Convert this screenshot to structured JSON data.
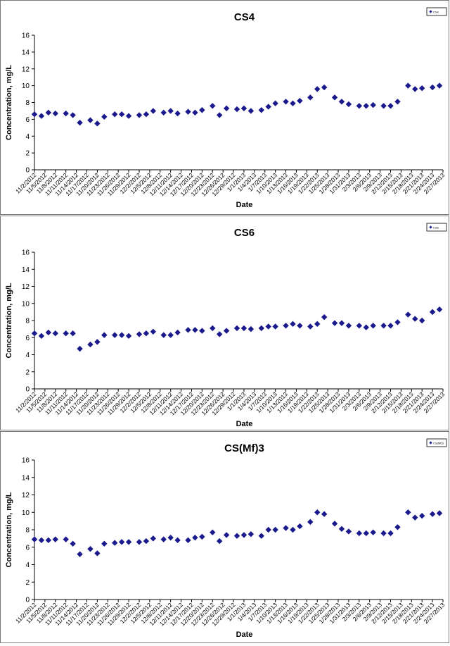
{
  "x_tick_labels": [
    "11/2/2012",
    "11/5/2012",
    "11/8/2012",
    "11/11/2012",
    "11/14/2012",
    "11/17/2012",
    "11/20/2012",
    "11/23/2012",
    "11/26/2012",
    "11/29/2012",
    "12/2/2012",
    "12/5/2012",
    "12/8/2012",
    "12/11/2012",
    "12/14/2012",
    "12/17/2012",
    "12/20/2012",
    "12/23/2012",
    "12/26/2012",
    "12/29/2012",
    "1/1/2013",
    "1/4/2013",
    "1/7/2013",
    "1/10/2013",
    "1/13/2013",
    "1/16/2013",
    "1/19/2013",
    "1/22/2013",
    "1/25/2013",
    "1/28/2013",
    "1/31/2013",
    "2/3/2013",
    "2/6/2013",
    "2/9/2013",
    "2/12/2013",
    "2/15/2013",
    "2/18/2013",
    "2/21/2013",
    "2/24/2013",
    "2/27/2013"
  ],
  "marker_color": "#1a1a8c",
  "chart_data": [
    {
      "type": "scatter",
      "title": "CS4",
      "xlabel": "Date",
      "ylabel": "Concentration, mg/L",
      "ylim": [
        0,
        16
      ],
      "yticks": [
        0,
        2,
        4,
        6,
        8,
        10,
        12,
        14,
        16
      ],
      "legend": "top-right",
      "legend_label": "CS4",
      "x_start": "11/2/2012",
      "x_end": "2/27/2013",
      "x": [
        "11/2/2012",
        "11/4/2012",
        "11/6/2012",
        "11/8/2012",
        "11/11/2012",
        "11/13/2012",
        "11/15/2012",
        "11/18/2012",
        "11/20/2012",
        "11/22/2012",
        "11/25/2012",
        "11/27/2012",
        "11/29/2012",
        "12/2/2012",
        "12/4/2012",
        "12/6/2012",
        "12/9/2012",
        "12/11/2012",
        "12/13/2012",
        "12/16/2012",
        "12/18/2012",
        "12/20/2012",
        "12/23/2012",
        "12/25/2012",
        "12/27/2012",
        "12/30/2012",
        "1/1/2013",
        "1/3/2013",
        "1/6/2013",
        "1/8/2013",
        "1/10/2013",
        "1/13/2013",
        "1/15/2013",
        "1/17/2013",
        "1/20/2013",
        "1/22/2013",
        "1/24/2013",
        "1/27/2013",
        "1/29/2013",
        "1/31/2013",
        "2/3/2013",
        "2/5/2013",
        "2/7/2013",
        "2/10/2013",
        "2/12/2013",
        "2/14/2013",
        "2/17/2013",
        "2/19/2013",
        "2/21/2013",
        "2/24/2013",
        "2/26/2013"
      ],
      "y": [
        6.6,
        6.4,
        6.8,
        6.7,
        6.7,
        6.5,
        5.6,
        5.9,
        5.5,
        6.3,
        6.6,
        6.6,
        6.4,
        6.5,
        6.6,
        7.0,
        6.8,
        7.0,
        6.7,
        6.9,
        6.8,
        7.1,
        7.6,
        6.5,
        7.3,
        7.2,
        7.3,
        7.0,
        7.1,
        7.5,
        7.9,
        8.1,
        7.9,
        8.2,
        8.6,
        9.6,
        9.8,
        8.6,
        8.1,
        7.8,
        7.6,
        7.6,
        7.7,
        7.6,
        7.6,
        8.1,
        10.0,
        9.6,
        9.7,
        9.8,
        10.0
      ]
    },
    {
      "type": "scatter",
      "title": "CS6",
      "xlabel": "Date",
      "ylabel": "Concentration, mg/L",
      "ylim": [
        0,
        16
      ],
      "yticks": [
        0,
        2,
        4,
        6,
        8,
        10,
        12,
        14,
        16
      ],
      "legend": "top-right",
      "legend_label": "CS6",
      "x_start": "11/2/2012",
      "x_end": "2/27/2013",
      "x": [
        "11/2/2012",
        "11/4/2012",
        "11/6/2012",
        "11/8/2012",
        "11/11/2012",
        "11/13/2012",
        "11/15/2012",
        "11/18/2012",
        "11/20/2012",
        "11/22/2012",
        "11/25/2012",
        "11/27/2012",
        "11/29/2012",
        "12/2/2012",
        "12/4/2012",
        "12/6/2012",
        "12/9/2012",
        "12/11/2012",
        "12/13/2012",
        "12/16/2012",
        "12/18/2012",
        "12/20/2012",
        "12/23/2012",
        "12/25/2012",
        "12/27/2012",
        "12/30/2012",
        "1/1/2013",
        "1/3/2013",
        "1/6/2013",
        "1/8/2013",
        "1/10/2013",
        "1/13/2013",
        "1/15/2013",
        "1/17/2013",
        "1/20/2013",
        "1/22/2013",
        "1/24/2013",
        "1/27/2013",
        "1/29/2013",
        "1/31/2013",
        "2/3/2013",
        "2/5/2013",
        "2/7/2013",
        "2/10/2013",
        "2/12/2013",
        "2/14/2013",
        "2/17/2013",
        "2/19/2013",
        "2/21/2013",
        "2/24/2013",
        "2/26/2013"
      ],
      "y": [
        6.5,
        6.2,
        6.6,
        6.5,
        6.5,
        6.5,
        4.7,
        5.2,
        5.5,
        6.3,
        6.3,
        6.3,
        6.2,
        6.4,
        6.5,
        6.7,
        6.3,
        6.3,
        6.6,
        6.9,
        6.9,
        6.8,
        7.1,
        6.4,
        6.8,
        7.1,
        7.1,
        7.0,
        7.1,
        7.3,
        7.3,
        7.4,
        7.6,
        7.4,
        7.3,
        7.6,
        8.4,
        7.7,
        7.7,
        7.4,
        7.4,
        7.2,
        7.4,
        7.4,
        7.4,
        7.8,
        8.7,
        8.2,
        8.0,
        9.0,
        9.3
      ]
    },
    {
      "type": "scatter",
      "title": "CS(Mf)3",
      "xlabel": "Date",
      "ylabel": "Concentration, mg/L",
      "ylim": [
        0,
        16
      ],
      "yticks": [
        0,
        2,
        4,
        6,
        8,
        10,
        12,
        14,
        16
      ],
      "legend": "top-right",
      "legend_label": "CS(Mf)3",
      "x_start": "11/2/2012",
      "x_end": "2/27/2013",
      "x": [
        "11/2/2012",
        "11/4/2012",
        "11/6/2012",
        "11/8/2012",
        "11/11/2012",
        "11/13/2012",
        "11/15/2012",
        "11/18/2012",
        "11/20/2012",
        "11/22/2012",
        "11/25/2012",
        "11/27/2012",
        "11/29/2012",
        "12/2/2012",
        "12/4/2012",
        "12/6/2012",
        "12/9/2012",
        "12/11/2012",
        "12/13/2012",
        "12/16/2012",
        "12/18/2012",
        "12/20/2012",
        "12/23/2012",
        "12/25/2012",
        "12/27/2012",
        "12/30/2012",
        "1/1/2013",
        "1/3/2013",
        "1/6/2013",
        "1/8/2013",
        "1/10/2013",
        "1/13/2013",
        "1/15/2013",
        "1/17/2013",
        "1/20/2013",
        "1/22/2013",
        "1/24/2013",
        "1/27/2013",
        "1/29/2013",
        "1/31/2013",
        "2/3/2013",
        "2/5/2013",
        "2/7/2013",
        "2/10/2013",
        "2/12/2013",
        "2/14/2013",
        "2/17/2013",
        "2/19/2013",
        "2/21/2013",
        "2/24/2013",
        "2/26/2013"
      ],
      "y": [
        6.9,
        6.8,
        6.8,
        6.9,
        6.9,
        6.4,
        5.2,
        5.8,
        5.3,
        6.4,
        6.5,
        6.6,
        6.6,
        6.6,
        6.7,
        7.0,
        6.9,
        7.1,
        6.8,
        6.8,
        7.1,
        7.2,
        7.7,
        6.7,
        7.4,
        7.3,
        7.4,
        7.5,
        7.3,
        8.0,
        8.0,
        8.2,
        8.0,
        8.4,
        8.9,
        10.0,
        9.8,
        8.7,
        8.1,
        7.8,
        7.6,
        7.6,
        7.7,
        7.6,
        7.6,
        8.3,
        10.0,
        9.4,
        9.6,
        9.8,
        9.9
      ]
    }
  ]
}
